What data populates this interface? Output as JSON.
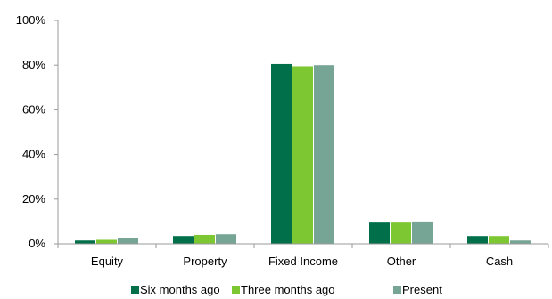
{
  "chart_data": {
    "type": "bar",
    "categories": [
      "Equity",
      "Property",
      "Fixed Income",
      "Other",
      "Cash"
    ],
    "series": [
      {
        "name": "Six months ago",
        "color": "#006F4A",
        "values": [
          1.5,
          3.5,
          80.5,
          9.5,
          3.5
        ]
      },
      {
        "name": "Three months ago",
        "color": "#7DC832",
        "values": [
          1.8,
          4.0,
          79.5,
          9.5,
          3.5
        ]
      },
      {
        "name": "Present",
        "color": "#76A595",
        "values": [
          2.6,
          4.3,
          80.0,
          10.0,
          1.5
        ]
      }
    ],
    "ylim": [
      0,
      100
    ],
    "yticks": [
      0,
      20,
      40,
      60,
      80,
      100
    ],
    "ytick_labels": [
      "0%",
      "20%",
      "40%",
      "60%",
      "80%",
      "100%"
    ],
    "grid": false,
    "legend_position": "bottom"
  }
}
